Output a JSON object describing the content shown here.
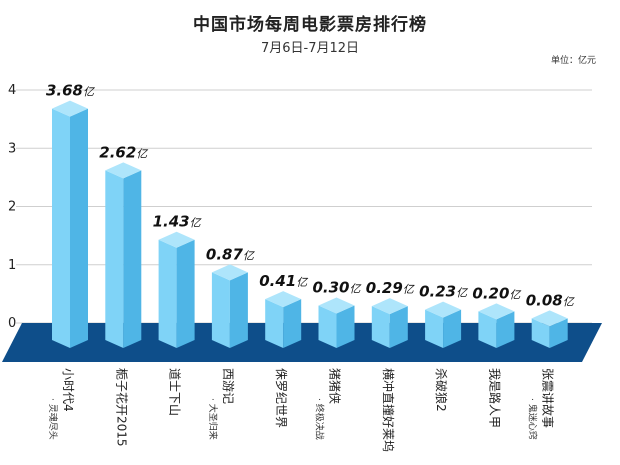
{
  "chart_data": {
    "type": "bar",
    "title": "中国市场每周电影票房排行榜",
    "subtitle": "7月6日-7月12日",
    "unit": "单位：亿元",
    "ylim": [
      0,
      4
    ],
    "yticks": [
      "0",
      "1",
      "2",
      "3",
      "4"
    ],
    "grid": true,
    "categories": [
      {
        "name": "小时代4",
        "sub": "灵魂尽头"
      },
      {
        "name": "栀子花开2015",
        "sub": ""
      },
      {
        "name": "道士下山",
        "sub": ""
      },
      {
        "name": "西游记",
        "sub": "大圣归来"
      },
      {
        "name": "侏罗纪世界",
        "sub": ""
      },
      {
        "name": "猪猪侠",
        "sub": "终极决战"
      },
      {
        "name": "横冲直撞好莱坞",
        "sub": ""
      },
      {
        "name": "杀破狼2",
        "sub": ""
      },
      {
        "name": "我是路人甲",
        "sub": ""
      },
      {
        "name": "张震讲故事",
        "sub": "鬼迷心窍"
      }
    ],
    "values": [
      3.68,
      2.62,
      1.43,
      0.87,
      0.41,
      0.3,
      0.29,
      0.23,
      0.2,
      0.08
    ],
    "value_suffix": "亿",
    "colors": {
      "bar_front": "#7fd3f7",
      "bar_side": "#4fb5e6",
      "bar_top": "#aee5fb",
      "base": "#0e4e8a",
      "grid": "#cfcfcf"
    }
  }
}
